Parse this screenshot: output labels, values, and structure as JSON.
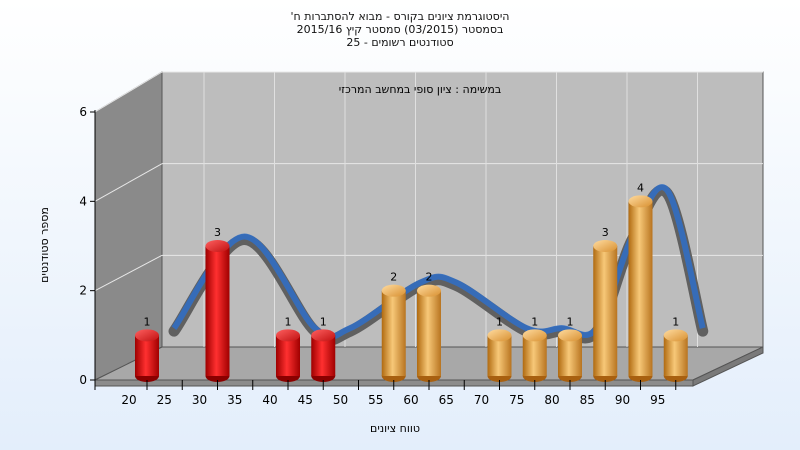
{
  "chart_data": {
    "type": "bar",
    "title_lines": [
      "היסטוגרמת ציונים בקורס - מבוא להסתברות ח'",
      "בסמסטר  (03/2015)  סמסטר קיץ  2015/16",
      "סטודנטים רשומים - 25"
    ],
    "annotation": "במשימה : ציון סופי במחשב המרכזי",
    "xlabel": "טווח ציונים",
    "ylabel": "מספר סטודנטים",
    "ylim": [
      0,
      6
    ],
    "yticks": [
      0,
      2,
      4,
      6
    ],
    "xticks": [
      "20",
      "25",
      "30",
      "35",
      "40",
      "45",
      "50",
      "55",
      "60",
      "65",
      "70",
      "75",
      "80",
      "85",
      "90",
      "95"
    ],
    "categories": [
      20,
      30,
      40,
      45,
      55,
      60,
      70,
      75,
      80,
      85,
      90,
      95
    ],
    "values": [
      1,
      3,
      1,
      1,
      2,
      2,
      1,
      1,
      1,
      3,
      4,
      1
    ],
    "colors": {
      "fail": "#dd1111",
      "pass": "#e8a040",
      "curve_back": "#606060",
      "curve_front": "#2f6fc8",
      "wall": "#bdbdbd",
      "side_wall": "#8a8a8a"
    }
  }
}
